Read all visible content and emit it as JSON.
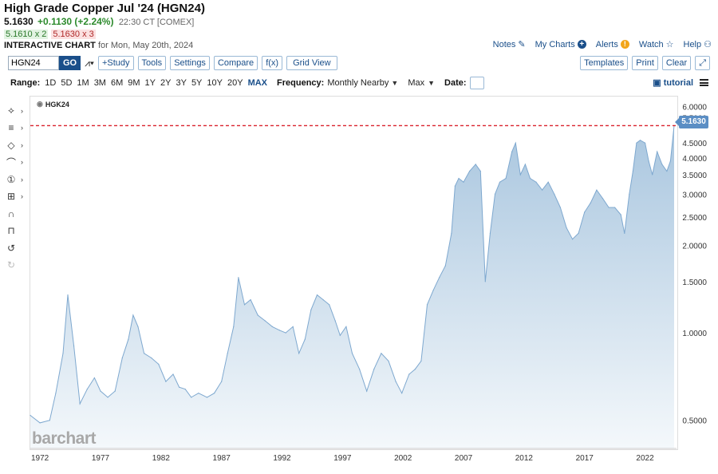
{
  "header": {
    "title": "High Grade Copper Jul '24 (HGN24)",
    "last": "5.1630",
    "change": "+0.1130 (+2.24%)",
    "time": "22:30 CT [COMEX]",
    "bid": "5.1610 x 2",
    "ask": "5.1630 x 3",
    "interactive_label": "INTERACTIVE CHART",
    "interactive_date": "for Mon, May 20th, 2024"
  },
  "top_links": [
    "Notes",
    "My Charts",
    "Alerts",
    "Watch",
    "Help"
  ],
  "toolbar": {
    "symbol_value": "HGN24",
    "go_label": "GO",
    "study_label": "+Study",
    "tools_label": "Tools",
    "settings_label": "Settings",
    "compare_label": "Compare",
    "fx_label": "f(x)",
    "gridview_label": "Grid View",
    "templates_label": "Templates",
    "print_label": "Print",
    "clear_label": "Clear"
  },
  "rangebar": {
    "range_label": "Range:",
    "ranges": [
      "1D",
      "5D",
      "1M",
      "3M",
      "6M",
      "9M",
      "1Y",
      "2Y",
      "3Y",
      "5Y",
      "10Y",
      "20Y",
      "MAX"
    ],
    "active_range": "MAX",
    "frequency_label": "Frequency:",
    "frequency_value": "Monthly Nearby",
    "max_value": "Max",
    "date_label": "Date:",
    "tutorial_label": "tutorial"
  },
  "colors": {
    "accent": "#1a4f8a",
    "area_line": "#7ea8cf",
    "area_fill_top": "#a9c6df",
    "area_fill_bottom": "#f4f8fb",
    "last_price_line": "#d9232e",
    "price_tag": "#5b8ec4"
  },
  "chart_data": {
    "type": "area",
    "legend": "HGK24",
    "watermark": "barchart",
    "y_scale": "log",
    "ylim": [
      0.4,
      6.5
    ],
    "y_ticks": [
      6.0,
      5.5,
      4.5,
      4.0,
      3.5,
      3.0,
      2.5,
      2.0,
      1.5,
      1.0,
      0.5
    ],
    "y_tick_labels": [
      "6.0000",
      "5.5000",
      "4.5000",
      "4.0000",
      "3.5000",
      "3.0000",
      "2.5000",
      "2.0000",
      "1.5000",
      "1.0000",
      "0.5000"
    ],
    "xlim": [
      1971.2,
      2024.6
    ],
    "x_ticks": [
      1972,
      1977,
      1982,
      1987,
      1992,
      1997,
      2002,
      2007,
      2012,
      2017,
      2022
    ],
    "x_tick_labels": [
      "1972",
      "1977",
      "1982",
      "1987",
      "1992",
      "1997",
      "2002",
      "2007",
      "2012",
      "2017",
      "2022"
    ],
    "last_price": 5.163,
    "last_price_label": "5.1630",
    "grid": false,
    "x": [
      1971.2,
      1972.0,
      1972.8,
      1973.3,
      1973.9,
      1974.3,
      1974.8,
      1975.3,
      1975.9,
      1976.5,
      1977.0,
      1977.6,
      1978.2,
      1978.8,
      1979.3,
      1979.7,
      1980.1,
      1980.6,
      1981.2,
      1981.8,
      1982.4,
      1983.0,
      1983.5,
      1984.0,
      1984.5,
      1985.1,
      1985.8,
      1986.4,
      1987.0,
      1987.5,
      1988.0,
      1988.4,
      1988.9,
      1989.4,
      1990.0,
      1990.6,
      1991.2,
      1991.8,
      1992.3,
      1992.9,
      1993.4,
      1993.9,
      1994.4,
      1994.9,
      1995.4,
      1995.9,
      1996.4,
      1996.8,
      1997.3,
      1997.8,
      1998.4,
      1999.0,
      1999.6,
      2000.2,
      2000.8,
      2001.4,
      2001.9,
      2002.5,
      2003.0,
      2003.5,
      2004.0,
      2004.5,
      2005.0,
      2005.5,
      2006.0,
      2006.3,
      2006.6,
      2007.0,
      2007.5,
      2008.0,
      2008.4,
      2008.8,
      2009.2,
      2009.6,
      2010.0,
      2010.5,
      2011.0,
      2011.3,
      2011.7,
      2012.1,
      2012.5,
      2013.0,
      2013.5,
      2014.0,
      2014.5,
      2015.0,
      2015.5,
      2016.0,
      2016.5,
      2017.0,
      2017.5,
      2018.0,
      2018.5,
      2019.0,
      2019.5,
      2020.0,
      2020.3,
      2020.7,
      2021.0,
      2021.3,
      2021.6,
      2022.0,
      2022.3,
      2022.6,
      2023.0,
      2023.4,
      2023.8,
      2024.1,
      2024.4
    ],
    "values": [
      0.52,
      0.49,
      0.5,
      0.62,
      0.85,
      1.35,
      0.9,
      0.57,
      0.64,
      0.7,
      0.63,
      0.6,
      0.63,
      0.82,
      0.95,
      1.15,
      1.05,
      0.85,
      0.82,
      0.78,
      0.68,
      0.72,
      0.65,
      0.64,
      0.6,
      0.62,
      0.6,
      0.62,
      0.68,
      0.85,
      1.05,
      1.55,
      1.25,
      1.3,
      1.15,
      1.1,
      1.05,
      1.02,
      1.0,
      1.05,
      0.85,
      0.95,
      1.2,
      1.35,
      1.3,
      1.25,
      1.1,
      0.98,
      1.05,
      0.85,
      0.75,
      0.63,
      0.75,
      0.85,
      0.8,
      0.68,
      0.62,
      0.72,
      0.75,
      0.8,
      1.25,
      1.4,
      1.55,
      1.7,
      2.2,
      3.2,
      3.4,
      3.3,
      3.6,
      3.8,
      3.6,
      1.5,
      2.2,
      3.0,
      3.3,
      3.4,
      4.2,
      4.5,
      3.5,
      3.8,
      3.4,
      3.3,
      3.1,
      3.3,
      3.0,
      2.7,
      2.3,
      2.1,
      2.2,
      2.6,
      2.8,
      3.1,
      2.9,
      2.7,
      2.7,
      2.55,
      2.2,
      3.0,
      3.6,
      4.5,
      4.6,
      4.5,
      3.9,
      3.5,
      4.2,
      3.8,
      3.6,
      3.9,
      5.163
    ]
  }
}
